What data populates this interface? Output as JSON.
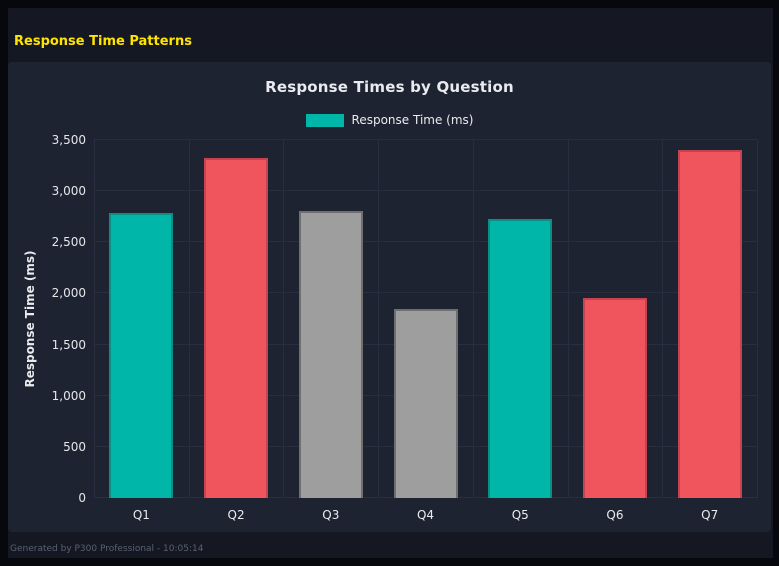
{
  "header": {
    "title": "Response Time Patterns",
    "title_color": "#ffe400"
  },
  "footer": {
    "text": "Generated by P300 Professional - 10:05:14"
  },
  "chart_data": {
    "type": "bar",
    "title": "Response Times by Question",
    "legend": [
      {
        "label": "Response Time (ms)",
        "color": "#00b6a8"
      }
    ],
    "legend_position": "top",
    "categories": [
      "Q1",
      "Q2",
      "Q3",
      "Q4",
      "Q5",
      "Q6",
      "Q7"
    ],
    "values": [
      2790,
      3320,
      2805,
      1845,
      2725,
      1955,
      3400
    ],
    "bar_colors": [
      "#00b6a8",
      "#f0545c",
      "#9e9e9e",
      "#9e9e9e",
      "#00b6a8",
      "#f0545c",
      "#f0545c"
    ],
    "bar_border_colors": [
      "#0c8e84",
      "#c44450",
      "#6f6f6f",
      "#6f6f6f",
      "#0c8e84",
      "#c44450",
      "#c44450"
    ],
    "xlabel": "",
    "ylabel": "Response Time (ms)",
    "ylim": [
      0,
      3500
    ],
    "yticks": [
      0,
      500,
      1000,
      1500,
      2000,
      2500,
      3000,
      3500
    ],
    "ytick_labels": [
      "0",
      "500",
      "1,000",
      "1,500",
      "2,000",
      "2,500",
      "3,000",
      "3,500"
    ],
    "grid": true,
    "background": "#1d2331",
    "grid_color": "#282e40"
  }
}
